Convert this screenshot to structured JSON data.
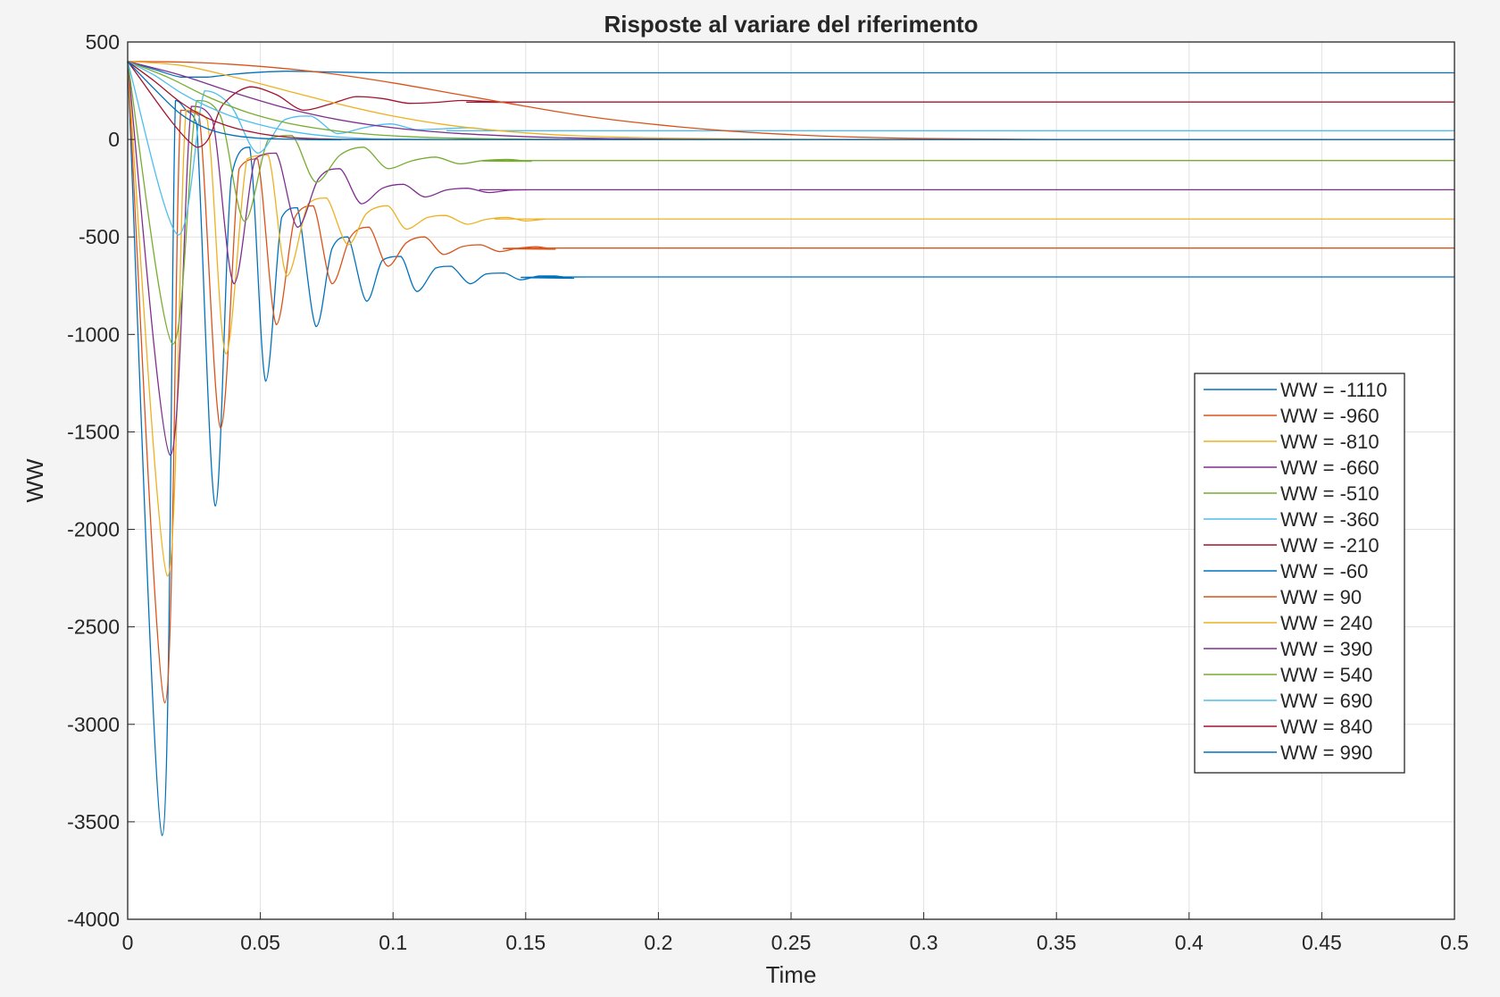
{
  "chart_data": {
    "type": "line",
    "title": "Risposte al variare del riferimento",
    "xlabel": "Time",
    "ylabel": "WW",
    "xlim": [
      0,
      0.5
    ],
    "ylim": [
      -4000,
      500
    ],
    "xticks": [
      0,
      0.05,
      0.1,
      0.15,
      0.2,
      0.25,
      0.3,
      0.35,
      0.4,
      0.45,
      0.5
    ],
    "xtick_labels": [
      "0",
      "0.05",
      "0.1",
      "0.15",
      "0.2",
      "0.25",
      "0.3",
      "0.35",
      "0.4",
      "0.45",
      "0.5"
    ],
    "yticks": [
      -4000,
      -3500,
      -3000,
      -2500,
      -2000,
      -1500,
      -1000,
      -500,
      0,
      500
    ],
    "ytick_labels": [
      "-4000",
      "-3500",
      "-3000",
      "-2500",
      "-2000",
      "-1500",
      "-1000",
      "-500",
      "0",
      "500"
    ],
    "grid": true,
    "legend_position": "right",
    "series": [
      {
        "name": "WW = -1110",
        "color": "#0072BD",
        "x": [
          0,
          0.013,
          0.018,
          0.022,
          0.026,
          0.033,
          0.039,
          0.046,
          0.052,
          0.058,
          0.064,
          0.071,
          0.077,
          0.083,
          0.09,
          0.096,
          0.103,
          0.109,
          0.116,
          0.122,
          0.129,
          0.135,
          0.142,
          0.148,
          0.155,
          0.161,
          0.168,
          0.174,
          0.5
        ],
        "y": [
          400,
          -3570,
          200,
          150,
          80,
          -1880,
          -200,
          -40,
          -1240,
          -400,
          -350,
          -960,
          -560,
          -500,
          -830,
          -620,
          -600,
          -780,
          -660,
          -650,
          -740,
          -690,
          -685,
          -720,
          -700,
          -700,
          -712,
          -705,
          -705
        ]
      },
      {
        "name": "WW = -960",
        "color": "#D95319",
        "x": [
          0,
          0.014,
          0.02,
          0.027,
          0.035,
          0.042,
          0.049,
          0.056,
          0.063,
          0.07,
          0.077,
          0.084,
          0.091,
          0.098,
          0.105,
          0.112,
          0.119,
          0.126,
          0.133,
          0.14,
          0.147,
          0.154,
          0.161,
          0.168,
          0.5
        ],
        "y": [
          400,
          -2890,
          150,
          120,
          -1480,
          -150,
          -100,
          -950,
          -400,
          -340,
          -740,
          -500,
          -450,
          -650,
          -530,
          -500,
          -590,
          -550,
          -540,
          -575,
          -558,
          -550,
          -563,
          -557,
          -557
        ]
      },
      {
        "name": "WW = -810",
        "color": "#EDB120",
        "x": [
          0,
          0.015,
          0.022,
          0.03,
          0.037,
          0.045,
          0.053,
          0.06,
          0.068,
          0.075,
          0.083,
          0.09,
          0.098,
          0.105,
          0.113,
          0.12,
          0.128,
          0.135,
          0.143,
          0.15,
          0.158,
          0.165,
          0.5
        ],
        "y": [
          400,
          -2240,
          150,
          100,
          -1100,
          -100,
          -80,
          -700,
          -330,
          -300,
          -540,
          -380,
          -340,
          -460,
          -400,
          -390,
          -435,
          -410,
          -400,
          -418,
          -408,
          -408,
          -408
        ]
      },
      {
        "name": "WW = -660",
        "color": "#7E2F8E",
        "x": [
          0,
          0.016,
          0.024,
          0.032,
          0.04,
          0.048,
          0.056,
          0.064,
          0.072,
          0.08,
          0.088,
          0.096,
          0.104,
          0.112,
          0.12,
          0.128,
          0.136,
          0.144,
          0.152,
          0.16,
          0.5
        ],
        "y": [
          400,
          -1620,
          170,
          100,
          -740,
          -100,
          -70,
          -450,
          -200,
          -150,
          -330,
          -250,
          -230,
          -295,
          -260,
          -250,
          -272,
          -260,
          -258,
          -258,
          -258
        ]
      },
      {
        "name": "WW = -510",
        "color": "#77AC30",
        "x": [
          0,
          0.017,
          0.026,
          0.035,
          0.044,
          0.053,
          0.062,
          0.071,
          0.08,
          0.089,
          0.098,
          0.107,
          0.116,
          0.125,
          0.134,
          0.143,
          0.152,
          0.161,
          0.5
        ],
        "y": [
          400,
          -1050,
          200,
          120,
          -420,
          0,
          20,
          -220,
          -80,
          -40,
          -150,
          -110,
          -90,
          -125,
          -108,
          -102,
          -112,
          -108,
          -108
        ]
      },
      {
        "name": "WW = -360",
        "color": "#4DBEEE",
        "x": [
          0,
          0.019,
          0.029,
          0.039,
          0.049,
          0.059,
          0.069,
          0.079,
          0.089,
          0.099,
          0.109,
          0.119,
          0.129,
          0.139,
          0.149,
          0.5
        ],
        "y": [
          400,
          -490,
          250,
          170,
          -70,
          100,
          120,
          30,
          60,
          80,
          50,
          55,
          60,
          45,
          45,
          45
        ]
      },
      {
        "name": "WW = -210",
        "color": "#A2142F",
        "x": [
          0,
          0.026,
          0.036,
          0.046,
          0.056,
          0.066,
          0.076,
          0.086,
          0.096,
          0.106,
          0.116,
          0.126,
          0.136,
          0.146,
          0.156,
          0.5
        ],
        "y": [
          400,
          -40,
          180,
          270,
          230,
          150,
          180,
          220,
          210,
          185,
          190,
          200,
          195,
          190,
          192,
          192
        ]
      },
      {
        "name": "WW = -60",
        "color": "#0072BD",
        "x": [
          0,
          0.01,
          0.02,
          0.03,
          0.04,
          0.05,
          0.06,
          0.07,
          0.08,
          0.09,
          0.1,
          0.11,
          0.12,
          0.13,
          0.14,
          0.15,
          0.5
        ],
        "y": [
          400,
          360,
          320,
          320,
          335,
          345,
          350,
          348,
          345,
          343,
          342,
          342,
          342,
          342,
          342,
          342,
          342
        ]
      },
      {
        "name": "WW = 90",
        "color": "#D95319",
        "x": [
          0,
          0.025,
          0.05,
          0.075,
          0.1,
          0.125,
          0.15,
          0.175,
          0.2,
          0.225,
          0.25,
          0.275,
          0.3,
          0.35,
          0.4,
          0.5
        ],
        "y": [
          400,
          395,
          375,
          340,
          290,
          230,
          170,
          115,
          75,
          45,
          25,
          12,
          5,
          0,
          0,
          0
        ]
      },
      {
        "name": "WW = 240",
        "color": "#EDB120",
        "x": [
          0,
          0.02,
          0.04,
          0.06,
          0.08,
          0.1,
          0.12,
          0.14,
          0.16,
          0.18,
          0.2,
          0.22,
          0.25,
          0.3,
          0.5
        ],
        "y": [
          400,
          380,
          320,
          250,
          180,
          120,
          75,
          45,
          25,
          14,
          8,
          4,
          1,
          0,
          0
        ]
      },
      {
        "name": "WW = 390",
        "color": "#7E2F8E",
        "x": [
          0,
          0.02,
          0.04,
          0.06,
          0.08,
          0.1,
          0.12,
          0.14,
          0.16,
          0.18,
          0.2,
          0.25,
          0.5
        ],
        "y": [
          400,
          330,
          240,
          160,
          100,
          60,
          35,
          20,
          10,
          5,
          2,
          0,
          0
        ]
      },
      {
        "name": "WW = 540",
        "color": "#77AC30",
        "x": [
          0,
          0.015,
          0.03,
          0.045,
          0.06,
          0.075,
          0.09,
          0.105,
          0.12,
          0.14,
          0.16,
          0.2,
          0.5
        ],
        "y": [
          400,
          320,
          220,
          140,
          85,
          50,
          28,
          15,
          8,
          3,
          1,
          0,
          0
        ]
      },
      {
        "name": "WW = 690",
        "color": "#4DBEEE",
        "x": [
          0,
          0.01,
          0.02,
          0.03,
          0.04,
          0.05,
          0.06,
          0.07,
          0.08,
          0.09,
          0.1,
          0.12,
          0.15,
          0.5
        ],
        "y": [
          400,
          330,
          240,
          170,
          115,
          75,
          45,
          25,
          12,
          5,
          2,
          0,
          0,
          0
        ]
      },
      {
        "name": "WW = 840",
        "color": "#A2142F",
        "x": [
          0,
          0.01,
          0.02,
          0.03,
          0.04,
          0.05,
          0.06,
          0.07,
          0.08,
          0.1,
          0.12,
          0.5
        ],
        "y": [
          400,
          300,
          190,
          110,
          60,
          30,
          12,
          4,
          1,
          0,
          0,
          0
        ]
      },
      {
        "name": "WW = 990",
        "color": "#0072BD",
        "x": [
          0,
          0.01,
          0.02,
          0.03,
          0.04,
          0.05,
          0.06,
          0.07,
          0.08,
          0.1,
          0.5
        ],
        "y": [
          400,
          260,
          130,
          55,
          20,
          6,
          2,
          0,
          -2,
          0,
          0
        ]
      }
    ]
  }
}
